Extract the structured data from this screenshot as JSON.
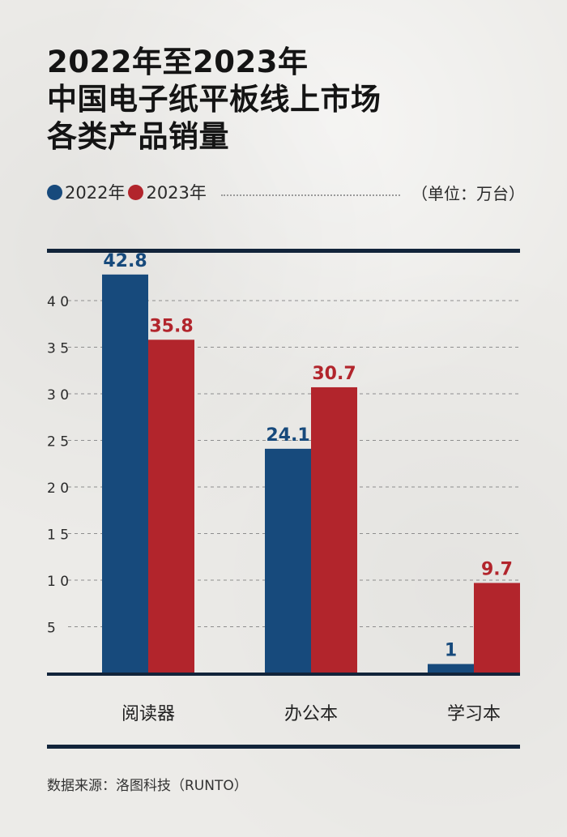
{
  "chart_data": {
    "type": "bar",
    "title_lines": [
      "2022年至2023年",
      "中国电子纸平板线上市场",
      "各类产品销量"
    ],
    "unit": "（单位：万台）",
    "categories": [
      "阅读器",
      "办公本",
      "学习本"
    ],
    "series": [
      {
        "name": "2022年",
        "color": "#174a7c",
        "values": [
          42.8,
          24.1,
          1
        ]
      },
      {
        "name": "2023年",
        "color": "#b2252c",
        "values": [
          35.8,
          30.7,
          9.7
        ]
      }
    ],
    "value_labels": {
      "2022年": [
        "42.8",
        "24.1",
        "1"
      ],
      "2023年": [
        "35.8",
        "30.7",
        "9.7"
      ]
    },
    "yticks": [
      5,
      10,
      15,
      20,
      25,
      30,
      35,
      40
    ],
    "ytick_labels": [
      "5",
      "1 0",
      "1 5",
      "2 0",
      "2 5",
      "3 0",
      "3 5",
      "4 0"
    ],
    "ylim": [
      0,
      45
    ],
    "grid": true,
    "legend_position": "top-left"
  },
  "source": "数据来源：洛图科技（RUNTO）"
}
